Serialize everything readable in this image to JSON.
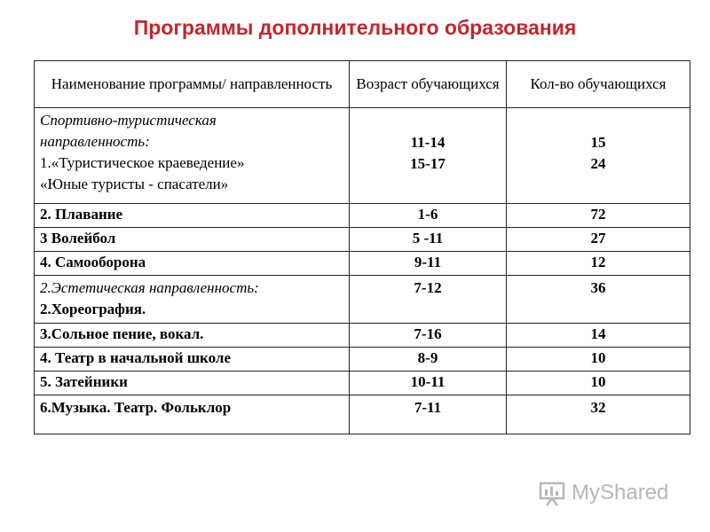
{
  "title": "Программы дополнительного образования",
  "table": {
    "headers": [
      "Наименование программы/ направленность",
      "Возраст обучающихся",
      "Кол-во обучающихся"
    ],
    "sport_group": {
      "line1": "Спортивно-туристическая",
      "line2": "направленность:",
      "line3": "1.«Туристическое краеведение»",
      "line4": "«Юные туристы -  спасатели»",
      "age1": "11-14",
      "age2": "15-17",
      "count1": "15",
      "count2": "24"
    },
    "rows": [
      {
        "name": "2. Плавание",
        "age": "1-6",
        "count": "72"
      },
      {
        "name": "3 Волейбол",
        "age": "5 -11",
        "count": "27"
      },
      {
        "name": "4. Самооборона",
        "age": "9-11",
        "count": "12"
      }
    ],
    "aesthetic_group": {
      "line1": "2.Эстетическая направленность:",
      "line2": "2.Хореография.",
      "age": "7-12",
      "count": "36"
    },
    "rows2": [
      {
        "name": "3.Сольное пение, вокал.",
        "age": "7-16",
        "count": "14"
      },
      {
        "name": "4. Театр в начальной  школе",
        "age": "8-9",
        "count": "10"
      },
      {
        "name": "5. Затейники",
        "age": "10-11",
        "count": "10"
      },
      {
        "name": "6.Музыка. Театр. Фольклор",
        "age": "7-11",
        "count": "32"
      }
    ]
  },
  "watermark": {
    "text": "MyShared",
    "icon": "presentation-board-icon"
  }
}
